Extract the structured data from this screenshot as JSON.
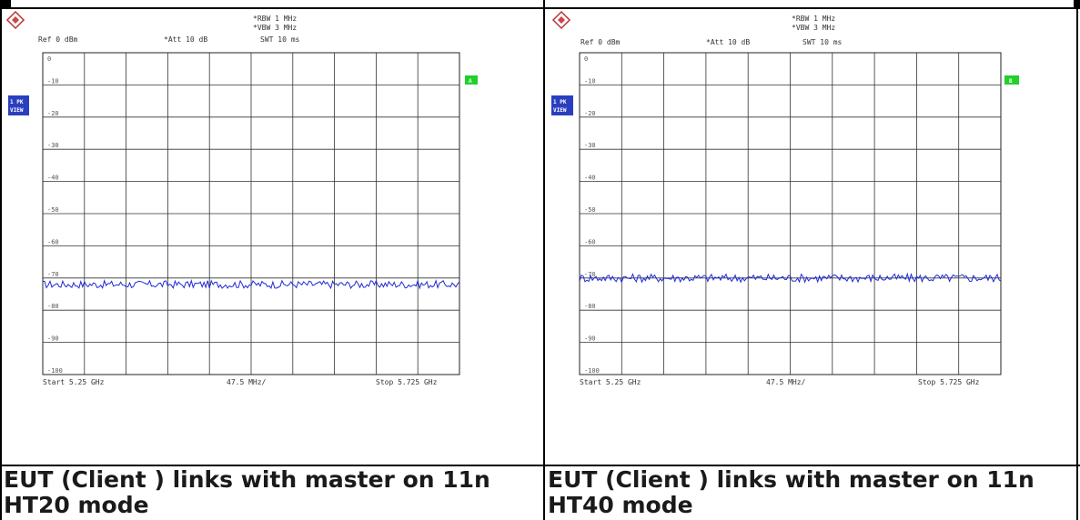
{
  "panels": [
    {
      "settings": {
        "rbw": "*RBW 1 MHz",
        "vbw": "*VBW 3 MHz",
        "ref": "Ref 0 dBm",
        "att": "*Att 10 dB",
        "swt": "SWT 10 ms"
      },
      "marker_badge": "A",
      "view_badge_1": "1 PK",
      "view_badge_2": "VIEW",
      "caption_line1": "EUT (Client ) links with master on 11n",
      "caption_line2": "HT20 mode"
    },
    {
      "settings": {
        "rbw": "*RBW 1 MHz",
        "vbw": "*VBW 3 MHz",
        "ref": "Ref 0 dBm",
        "att": "*Att 10 dB",
        "swt": "SWT 10 ms"
      },
      "marker_badge": "B",
      "view_badge_1": "1 PK",
      "view_badge_2": "VIEW",
      "caption_line1": "EUT (Client ) links with master on 11n",
      "caption_line2": "HT40 mode"
    }
  ],
  "chart_data": [
    {
      "type": "line",
      "title": "",
      "xlabel": "",
      "ylabel": "",
      "x_start_label": "Start 5.25 GHz",
      "x_div_label": "47.5 MHz/",
      "x_stop_label": "Stop 5.725 GHz",
      "xlim": [
        5.25,
        5.725
      ],
      "ylim": [
        -100,
        0
      ],
      "y_ticks": [
        "0",
        "-10",
        "-20",
        "-30",
        "-40",
        "-50",
        "-60",
        "-70",
        "-80",
        "-90",
        "-100"
      ],
      "x_divisions": 10,
      "y_divisions": 10,
      "grid": true,
      "trace_color": "#1f2bd6",
      "series": [
        {
          "level_dbm": -72,
          "ripple_db": 1.2
        }
      ]
    },
    {
      "type": "line",
      "title": "",
      "xlabel": "",
      "ylabel": "",
      "x_start_label": "Start 5.25 GHz",
      "x_div_label": "47.5 MHz/",
      "x_stop_label": "Stop 5.725 GHz",
      "xlim": [
        5.25,
        5.725
      ],
      "ylim": [
        -100,
        0
      ],
      "y_ticks": [
        "0",
        "-10",
        "-20",
        "-30",
        "-40",
        "-50",
        "-60",
        "-70",
        "-80",
        "-90",
        "-100"
      ],
      "x_divisions": 10,
      "y_divisions": 10,
      "grid": true,
      "trace_color": "#1f2bd6",
      "series": [
        {
          "level_dbm": -70,
          "ripple_db": 1.3
        }
      ]
    }
  ]
}
